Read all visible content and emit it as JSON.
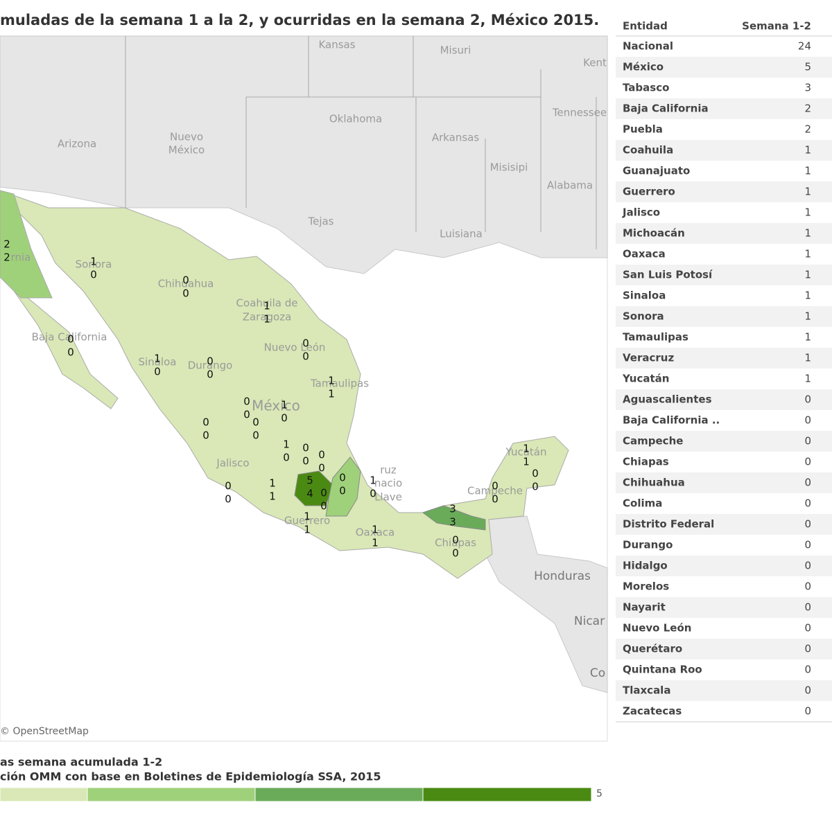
{
  "header": {
    "title": "muladas de la semana 1 a la 2, y ocurridas en la semana 2, México 2015."
  },
  "map": {
    "places": [
      "Kansas",
      "Misuri",
      "Kent",
      "Oklahoma",
      "Tennessee",
      "Arizona",
      "Nuevo",
      "México",
      "Arkansas",
      "Misisipi",
      "Alabama",
      "Tejas",
      "Luisiana",
      "Sonora",
      "Chihuahua",
      "Coahuila de",
      "Zaragoza",
      "Nuevo León",
      "Tamaulipas",
      "Durango",
      "Sinaloa",
      "Baja California",
      "rnia",
      "México",
      "Jalisco",
      "Guerrero",
      "Oaxaca",
      "Chiapas",
      "ruz",
      "nacio",
      "Llave",
      "Campeche",
      "Yucatán",
      "Honduras",
      "Nicar",
      "Co"
    ],
    "attribution": "© OpenStreetMap",
    "state_counts": [
      [
        2,
        2
      ],
      [
        1,
        0
      ],
      [
        0,
        0
      ],
      [
        1,
        1
      ],
      [
        0,
        0
      ],
      [
        0,
        0
      ],
      [
        1,
        0
      ],
      [
        0,
        0
      ],
      [
        1,
        1
      ],
      [
        0,
        0
      ],
      [
        1,
        0
      ],
      [
        0,
        0
      ],
      [
        0,
        0
      ],
      [
        1,
        0
      ],
      [
        0,
        0
      ],
      [
        0,
        0
      ],
      [
        5,
        4
      ],
      [
        0,
        0
      ],
      [
        1,
        0
      ],
      [
        0,
        0
      ],
      [
        0,
        0
      ],
      [
        1,
        1
      ],
      [
        1,
        1
      ],
      [
        1,
        1
      ],
      [
        3,
        3
      ],
      [
        0,
        0
      ],
      [
        0,
        0
      ],
      [
        1,
        1
      ],
      [
        0,
        0
      ]
    ]
  },
  "table": {
    "columns": [
      "Entidad",
      "Semana  1-2"
    ],
    "rows": [
      [
        "Nacional",
        24
      ],
      [
        "México",
        5
      ],
      [
        "Tabasco",
        3
      ],
      [
        "Baja California",
        2
      ],
      [
        "Puebla",
        2
      ],
      [
        "Coahuila",
        1
      ],
      [
        "Guanajuato",
        1
      ],
      [
        "Guerrero",
        1
      ],
      [
        "Jalisco",
        1
      ],
      [
        "Michoacán",
        1
      ],
      [
        "Oaxaca",
        1
      ],
      [
        "San Luis Potosí",
        1
      ],
      [
        "Sinaloa",
        1
      ],
      [
        "Sonora",
        1
      ],
      [
        "Tamaulipas",
        1
      ],
      [
        "Veracruz",
        1
      ],
      [
        "Yucatán",
        1
      ],
      [
        "Aguascalientes",
        0
      ],
      [
        "Baja California ..",
        0
      ],
      [
        "Campeche",
        0
      ],
      [
        "Chiapas",
        0
      ],
      [
        "Chihuahua",
        0
      ],
      [
        "Colima",
        0
      ],
      [
        "Distrito Federal",
        0
      ],
      [
        "Durango",
        0
      ],
      [
        "Hidalgo",
        0
      ],
      [
        "Morelos",
        0
      ],
      [
        "Nayarit",
        0
      ],
      [
        "Nuevo León",
        0
      ],
      [
        "Querétaro",
        0
      ],
      [
        "Quintana Roo",
        0
      ],
      [
        "Tlaxcala",
        0
      ],
      [
        "Zacatecas",
        0
      ]
    ]
  },
  "legend": {
    "title": "as semana acumulada 1-2",
    "source": "ción OMM con base en Boletines de Epidemiología SSA, 2015",
    "max": 5,
    "colors": [
      "#d9e8b6",
      "#9fd17a",
      "#6aab5a",
      "#4b8a12"
    ]
  }
}
